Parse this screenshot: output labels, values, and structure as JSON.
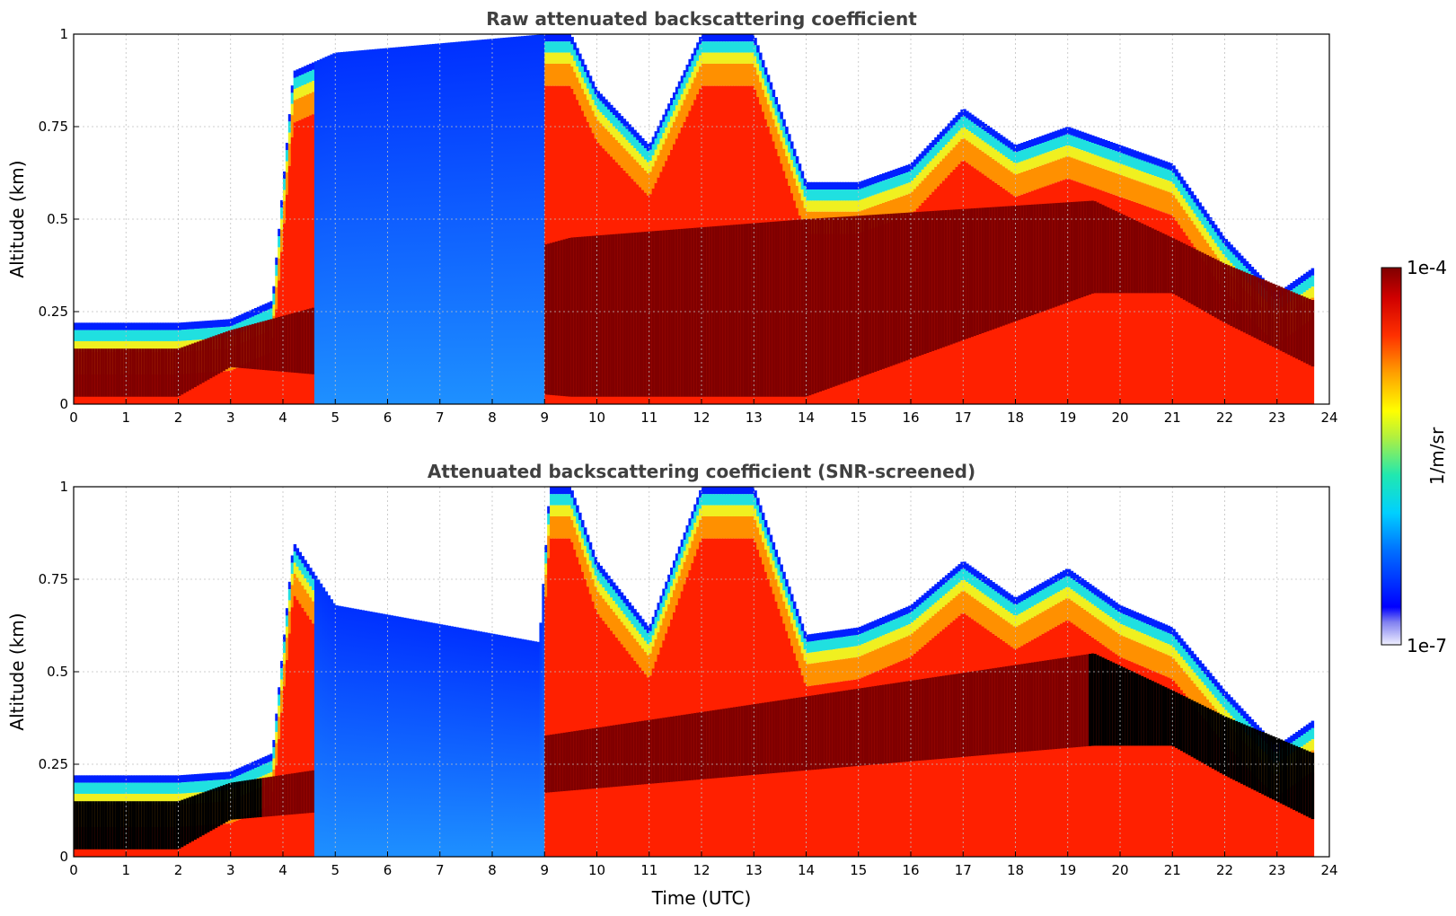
{
  "chart_data": [
    {
      "type": "heatmap",
      "title": "Raw attenuated backscattering coefficient",
      "xlabel": "",
      "ylabel": "Altitude (km)",
      "xlim": [
        0,
        24
      ],
      "ylim": [
        0,
        1
      ],
      "x_ticks": [
        "0",
        "1",
        "2",
        "3",
        "4",
        "5",
        "6",
        "7",
        "8",
        "9",
        "10",
        "11",
        "12",
        "13",
        "14",
        "15",
        "16",
        "17",
        "18",
        "19",
        "20",
        "21",
        "22",
        "23",
        "24"
      ],
      "y_ticks": [
        "0",
        "0.25",
        "0.5",
        "0.75",
        "1"
      ],
      "grid": true,
      "data_extent_hours": [
        0,
        23.7
      ],
      "boundary_layer_top_km": [
        [
          0,
          0.22
        ],
        [
          1,
          0.22
        ],
        [
          2,
          0.22
        ],
        [
          3,
          0.23
        ],
        [
          3.8,
          0.28
        ],
        [
          4.2,
          0.9
        ],
        [
          5,
          0.95
        ],
        [
          9,
          1.0
        ],
        [
          9.5,
          1.0
        ],
        [
          10,
          0.85
        ],
        [
          11,
          0.7
        ],
        [
          12,
          1.0
        ],
        [
          13,
          1.0
        ],
        [
          14,
          0.6
        ],
        [
          15,
          0.6
        ],
        [
          16,
          0.65
        ],
        [
          17,
          0.8
        ],
        [
          18,
          0.7
        ],
        [
          19,
          0.75
        ],
        [
          20,
          0.7
        ],
        [
          21,
          0.65
        ],
        [
          22,
          0.45
        ],
        [
          23,
          0.3
        ],
        [
          23.7,
          0.37
        ]
      ],
      "saturated_layer_km": [
        [
          0,
          0.02,
          0.15
        ],
        [
          2,
          0.02,
          0.15
        ],
        [
          3,
          0.1,
          0.2
        ],
        [
          9.5,
          0.02,
          0.45
        ],
        [
          14,
          0.02,
          0.5
        ],
        [
          19.5,
          0.3,
          0.55
        ],
        [
          21,
          0.3,
          0.45
        ],
        [
          22,
          0.22,
          0.38
        ],
        [
          23.7,
          0.1,
          0.28
        ]
      ]
    },
    {
      "type": "heatmap",
      "title": "Attenuated backscattering coefficient (SNR-screened)",
      "xlabel": "Time (UTC)",
      "ylabel": "Altitude (km)",
      "xlim": [
        0,
        24
      ],
      "ylim": [
        0,
        1
      ],
      "x_ticks": [
        "0",
        "1",
        "2",
        "3",
        "4",
        "5",
        "6",
        "7",
        "8",
        "9",
        "10",
        "11",
        "12",
        "13",
        "14",
        "15",
        "16",
        "17",
        "18",
        "19",
        "20",
        "21",
        "22",
        "23",
        "24"
      ],
      "y_ticks": [
        "0",
        "0.25",
        "0.5",
        "0.75",
        "1"
      ],
      "grid": true,
      "data_extent_hours": [
        0,
        23.7
      ],
      "boundary_layer_top_km": [
        [
          0,
          0.22
        ],
        [
          1,
          0.22
        ],
        [
          2,
          0.22
        ],
        [
          3,
          0.23
        ],
        [
          3.8,
          0.28
        ],
        [
          4.2,
          0.85
        ],
        [
          5,
          0.68
        ],
        [
          8.9,
          0.58
        ],
        [
          9.1,
          1.0
        ],
        [
          9.5,
          1.0
        ],
        [
          10,
          0.8
        ],
        [
          11,
          0.62
        ],
        [
          12,
          1.0
        ],
        [
          13,
          1.0
        ],
        [
          14,
          0.6
        ],
        [
          15,
          0.62
        ],
        [
          16,
          0.68
        ],
        [
          17,
          0.8
        ],
        [
          18,
          0.7
        ],
        [
          19,
          0.78
        ],
        [
          20,
          0.68
        ],
        [
          21,
          0.62
        ],
        [
          22,
          0.45
        ],
        [
          23,
          0.3
        ],
        [
          23.7,
          0.37
        ]
      ],
      "saturated_layer_km": [
        [
          0,
          0.02,
          0.15
        ],
        [
          2,
          0.02,
          0.15
        ],
        [
          3,
          0.1,
          0.2
        ],
        [
          19.5,
          0.3,
          0.55
        ],
        [
          21,
          0.3,
          0.45
        ],
        [
          22,
          0.22,
          0.38
        ],
        [
          23.7,
          0.1,
          0.28
        ]
      ]
    }
  ],
  "colorbar": {
    "max_label": "1e-4",
    "min_label": "1e-7",
    "units_label": "1/m/sr",
    "scale": "log10",
    "range": [
      1e-07,
      0.0001
    ]
  },
  "colors": {
    "dark_red": "#800000",
    "red": "#ff2000",
    "orange": "#ff9000",
    "yellow": "#f0f020",
    "cyan": "#20e0e0",
    "blue": "#0020ff",
    "pale": "#e8e8ff",
    "screened_black": "#000000"
  }
}
